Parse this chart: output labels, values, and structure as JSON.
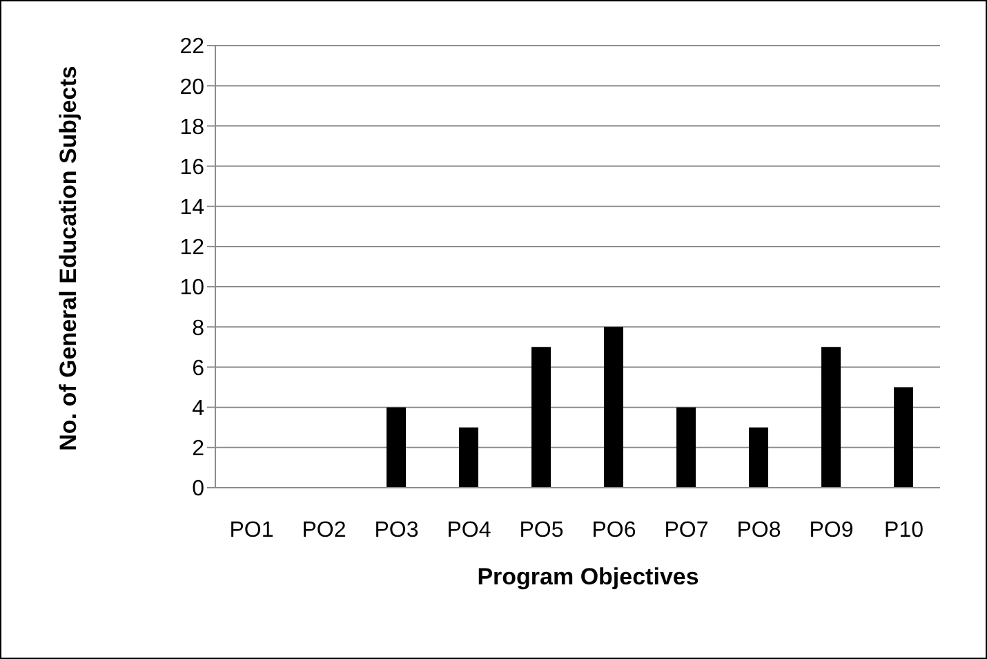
{
  "chart_data": {
    "type": "bar",
    "xlabel": "Program Objectives",
    "ylabel": "No. of General Education Subjects",
    "categories": [
      "PO1",
      "PO2",
      "PO3",
      "PO4",
      "PO5",
      "PO6",
      "PO7",
      "PO8",
      "PO9",
      "P10"
    ],
    "values": [
      0,
      0,
      4,
      3,
      7,
      8,
      4,
      3,
      7,
      5
    ],
    "color": "#000000",
    "ylim": [
      0,
      22
    ],
    "yticks": [
      0,
      2,
      4,
      6,
      8,
      10,
      12,
      14,
      16,
      18,
      20,
      22
    ],
    "grid": "y"
  }
}
